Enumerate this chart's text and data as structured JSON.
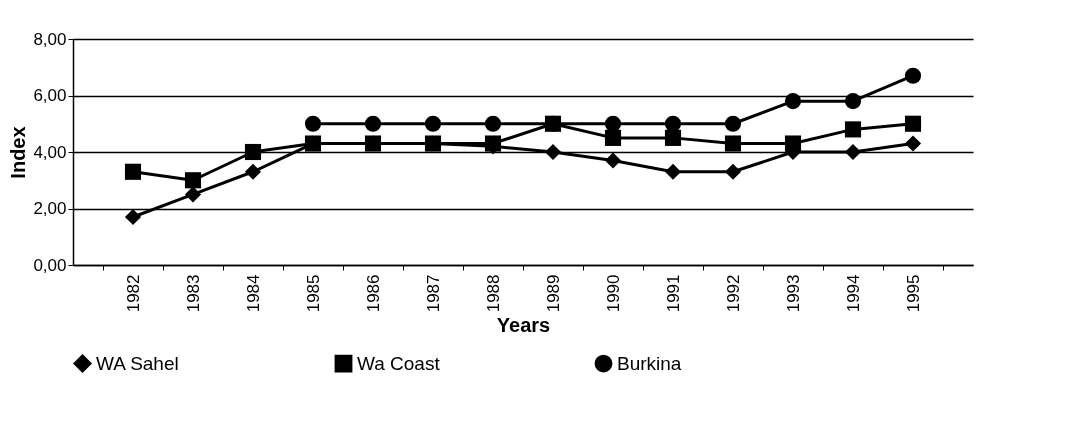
{
  "chart_data": {
    "type": "line",
    "xlabel": "Years",
    "ylabel": "Index",
    "categories": [
      "1982",
      "1983",
      "1984",
      "1985",
      "1986",
      "1987",
      "1988",
      "1989",
      "1990",
      "1991",
      "1992",
      "1993",
      "1994",
      "1995"
    ],
    "series": [
      {
        "name": "WA Sahel",
        "color": "#000000",
        "marker": "diamond",
        "values": [
          1.7,
          2.5,
          3.3,
          4.3,
          4.3,
          4.3,
          4.2,
          4.0,
          3.7,
          3.3,
          3.3,
          4.0,
          4.0,
          4.3
        ]
      },
      {
        "name": "Wa Coast",
        "color": "#000000",
        "marker": "square",
        "values": [
          3.3,
          3.0,
          4.0,
          4.3,
          4.3,
          4.3,
          4.3,
          5.0,
          4.5,
          4.5,
          4.3,
          4.3,
          4.8,
          5.0
        ]
      },
      {
        "name": "Burkina",
        "color": "#000000",
        "marker": "circle",
        "values": [
          null,
          null,
          null,
          5.0,
          5.0,
          5.0,
          5.0,
          5.0,
          5.0,
          5.0,
          5.0,
          5.8,
          5.8,
          6.7
        ]
      }
    ],
    "ylim": [
      0,
      8
    ],
    "yticks": [
      {
        "value": 0,
        "label": "0,00"
      },
      {
        "value": 2,
        "label": "2,00"
      },
      {
        "value": 4,
        "label": "4,00"
      },
      {
        "value": 6,
        "label": "6,00"
      },
      {
        "value": 8,
        "label": "8,00"
      }
    ],
    "grid": "y",
    "legend": "bottom",
    "line_style": "solid"
  }
}
